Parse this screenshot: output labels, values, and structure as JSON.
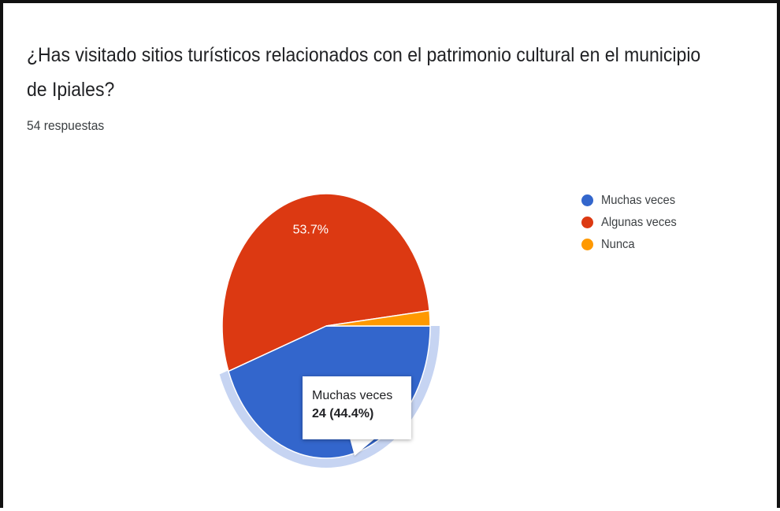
{
  "question": {
    "title": "¿Has visitado sitios turísticos relacionados con el patrimonio cultural en el municipio de Ipiales?",
    "responses": "54 respuestas"
  },
  "chart_data": {
    "type": "pie",
    "categories": [
      "Muchas veces",
      "Algunas veces",
      "Nunca"
    ],
    "counts": [
      24,
      29,
      1
    ],
    "percentages": [
      44.4,
      53.7,
      1.9
    ],
    "colors": [
      "#3366cc",
      "#dc3912",
      "#ff9900"
    ],
    "slice_labels": [
      "",
      "53.7%",
      ""
    ],
    "legend_position": "right",
    "highlighted": "Muchas veces"
  },
  "tooltip": {
    "category": "Muchas veces",
    "value": "24 (44.4%)"
  }
}
